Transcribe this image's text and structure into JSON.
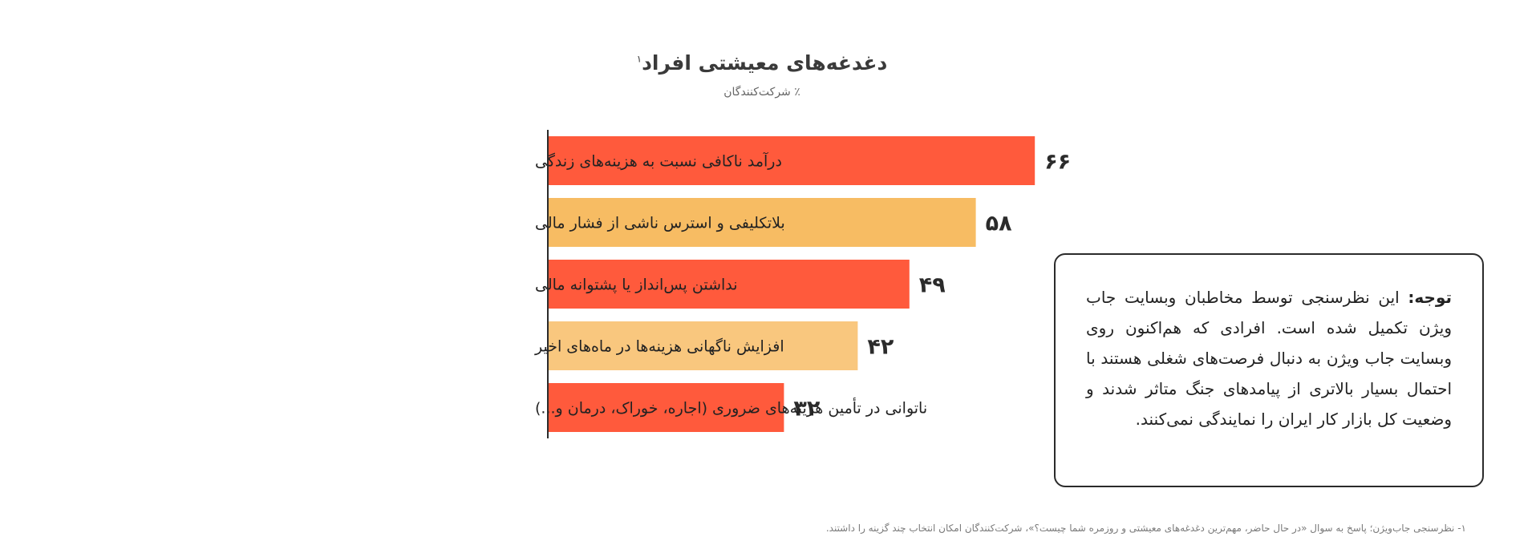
{
  "chart_data": {
    "type": "bar",
    "orientation": "horizontal",
    "title": "دغدغه‌های معیشتی افراد",
    "title_footnote_marker": "۱",
    "subtitle": "٪ شرکت‌کنندگان",
    "categories": [
      "درآمد ناکافی نسبت به هزینه‌های زندگی",
      "بلاتکلیفی و استرس ناشی از فشار مالی",
      "نداشتن پس‌انداز یا پشتوانه مالی",
      "افزایش ناگهانی هزینه‌ها در ماه‌های اخیر",
      "ناتوانی در تأمین هزینه‌های ضروری (اجاره، خوراک، درمان و...)"
    ],
    "values": [
      66,
      58,
      49,
      42,
      32
    ],
    "value_labels": [
      "۶۶",
      "۵۸",
      "۴۹",
      "۴۲",
      "۳۲"
    ],
    "colors": [
      "#ff5a3c",
      "#f7bc63",
      "#ff5a3c",
      "#f9c77e",
      "#ff5a3c"
    ],
    "xlim": [
      0,
      100
    ],
    "grid": false,
    "legend": "none"
  },
  "note": {
    "label": "توجه:",
    "text": "این نظرسنجی توسط مخاطبان وبسایت جاب ویژن تکمیل شده است. افرادی که هم‌اکنون روی وبسایت جاب ویژن به دنبال فرصت‌های شغلی هستند با احتمال بسیار بالاتری از پیامدهای جنگ متاثر شدند و وضعیت کل بازار کار ایران را نمایندگی نمی‌کنند."
  },
  "footnote": "۱- نظرسنجی جاب‌ویژن؛ پاسخ به سوال «در حال حاضر، مهم‌ترین دغدغه‌های معیشتی و روزمره شما چیست؟»، شرکت‌کنندگان امکان انتخاب چند گزینه را داشتند."
}
